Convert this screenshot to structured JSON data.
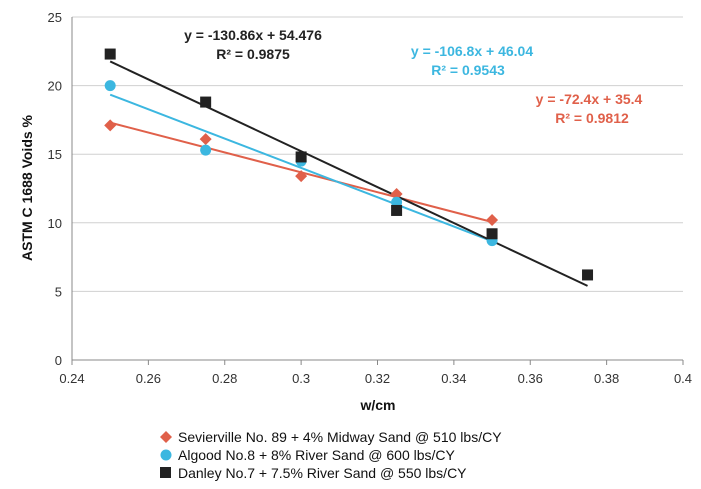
{
  "chart_data": {
    "type": "scatter",
    "xlabel": "w/cm",
    "ylabel": "ASTM C 1688  Voids %",
    "xlim": [
      0.24,
      0.4
    ],
    "ylim": [
      0,
      25
    ],
    "x_ticks": [
      "0.24",
      "0.26",
      "0.28",
      "0.3",
      "0.32",
      "0.34",
      "0.36",
      "0.38",
      "0.4"
    ],
    "y_ticks": [
      "0",
      "5",
      "10",
      "15",
      "20",
      "25"
    ],
    "grid": "horizontal",
    "legend_position": "bottom",
    "series": [
      {
        "name": "Sevierville No. 89 + 4% Midway Sand @ 510 lbs/CY",
        "marker": "diamond",
        "color": "#e0604a",
        "points": [
          {
            "x": 0.25,
            "y": 17.1
          },
          {
            "x": 0.275,
            "y": 16.1
          },
          {
            "x": 0.3,
            "y": 13.4
          },
          {
            "x": 0.325,
            "y": 12.1
          },
          {
            "x": 0.35,
            "y": 10.2
          }
        ],
        "trendline": {
          "slope": -72.4,
          "intercept": 35.4,
          "x_range": [
            0.25,
            0.35
          ]
        },
        "equation": "y = -72.4x + 35.4",
        "r2": "R² = 0.9812"
      },
      {
        "name": "Algood No.8 + 8% River Sand @ 600 lbs/CY",
        "marker": "circle",
        "color": "#3cb7e0",
        "points": [
          {
            "x": 0.25,
            "y": 20.0
          },
          {
            "x": 0.275,
            "y": 15.3
          },
          {
            "x": 0.3,
            "y": 14.5
          },
          {
            "x": 0.325,
            "y": 11.5
          },
          {
            "x": 0.35,
            "y": 8.7
          }
        ],
        "trendline": {
          "slope": -106.8,
          "intercept": 46.04,
          "x_range": [
            0.25,
            0.35
          ]
        },
        "equation": "y = -106.8x + 46.04",
        "r2": "R² = 0.9543"
      },
      {
        "name": "Danley No.7 + 7.5% River Sand @ 550 lbs/CY",
        "marker": "square",
        "color": "#222222",
        "points": [
          {
            "x": 0.25,
            "y": 22.3
          },
          {
            "x": 0.275,
            "y": 18.8
          },
          {
            "x": 0.3,
            "y": 14.8
          },
          {
            "x": 0.325,
            "y": 10.9
          },
          {
            "x": 0.35,
            "y": 9.2
          },
          {
            "x": 0.375,
            "y": 6.2
          }
        ],
        "trendline": {
          "slope": -130.86,
          "intercept": 54.476,
          "x_range": [
            0.25,
            0.375
          ]
        },
        "equation": "y = -130.86x + 54.476",
        "r2": "R² = 0.9875"
      }
    ]
  }
}
